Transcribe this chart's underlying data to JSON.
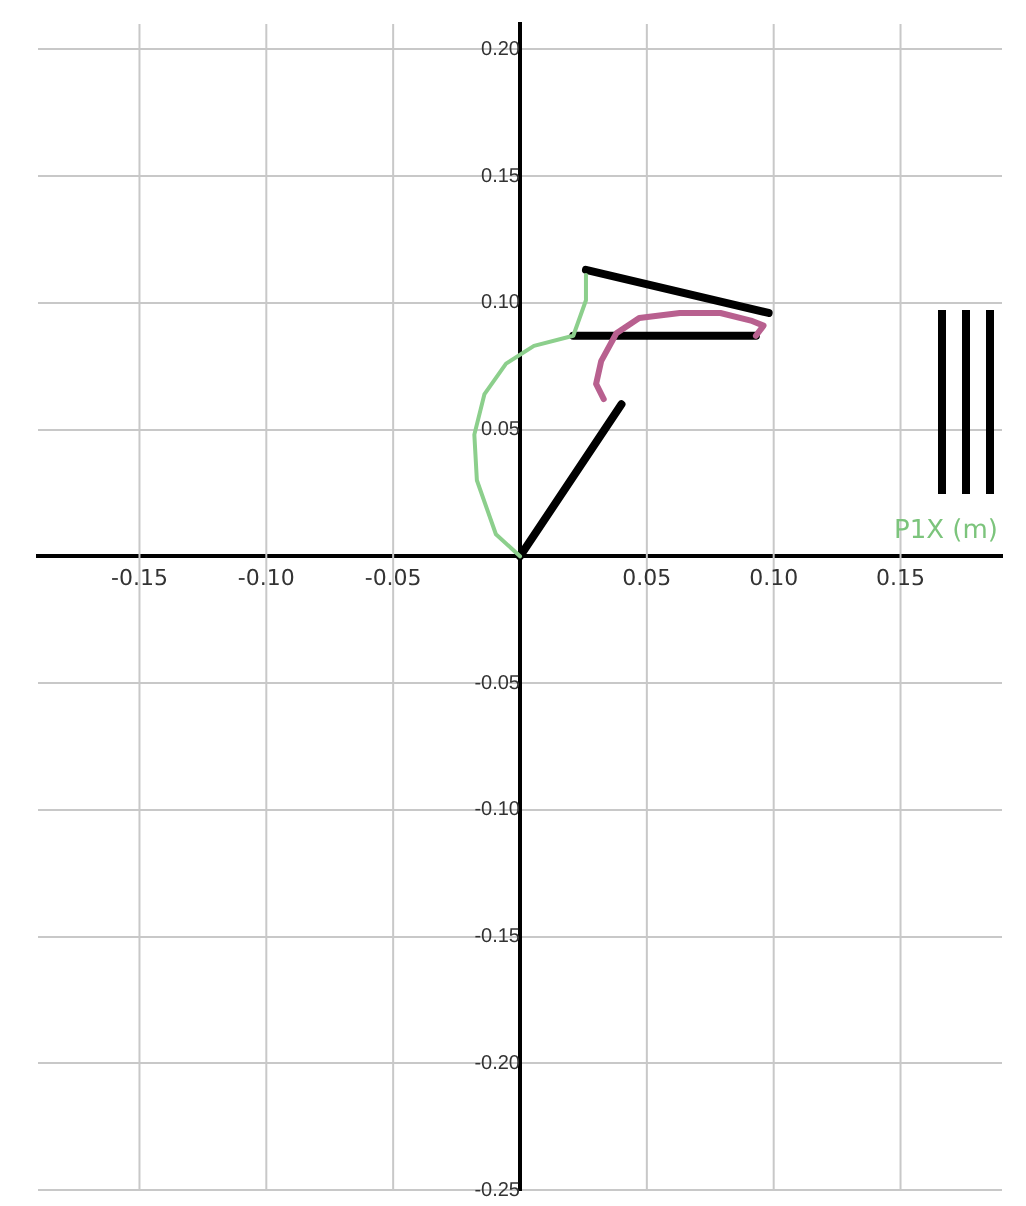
{
  "chart_data": {
    "type": "line",
    "xlabel": "P1X (m)",
    "xlim": [
      -0.19,
      0.19
    ],
    "ylim": [
      -0.25,
      0.21
    ],
    "xticks": [
      -0.15,
      {
        "value": -0.1,
        "label": "-0.10"
      },
      -0.05,
      {
        "value": 0,
        "label": null
      },
      0.05,
      {
        "value": 0.1,
        "label": "0.10"
      },
      0.15
    ],
    "yticks": [
      -0.25,
      {
        "value": -0.2,
        "label": "-0.20"
      },
      -0.15,
      {
        "value": -0.1,
        "label": "-0.10"
      },
      -0.05,
      {
        "value": 0,
        "label": null
      },
      0.05,
      {
        "value": 0.1,
        "label": "0.10"
      },
      0.15,
      {
        "value": 0.2,
        "label": "0.20"
      }
    ],
    "grid": true,
    "legend": false,
    "marker": "none",
    "line_style": "solid",
    "series": [
      {
        "color": "#8ccf8c",
        "x": [
          0,
          -0.0095,
          -0.017,
          -0.018,
          -0.014,
          -0.0055,
          0.0055,
          0.021,
          0.026,
          0.026
        ],
        "values": [
          0,
          0.0087,
          0.03,
          0.048,
          0.064,
          0.076,
          0.083,
          0.087,
          0.101,
          0.111
        ]
      },
      {
        "color": "#b8608f",
        "x": [
          0.033,
          0.03,
          0.032,
          0.038,
          0.047,
          0.063,
          0.079,
          0.091,
          0.096,
          0.093
        ],
        "values": [
          0.062,
          0.068,
          0.077,
          0.088,
          0.094,
          0.096,
          0.096,
          0.093,
          0.091,
          0.087
        ]
      },
      {
        "color": "#000000",
        "x": [
          0,
          0.04
        ],
        "values": [
          0,
          0.06
        ]
      },
      {
        "color": "#000000",
        "x": [
          0.021,
          0.093
        ],
        "values": [
          0.087,
          0.087
        ]
      },
      {
        "color": "#000000",
        "x": [
          0.026,
          0.098
        ],
        "values": [
          0.113,
          0.096
        ]
      }
    ]
  }
}
